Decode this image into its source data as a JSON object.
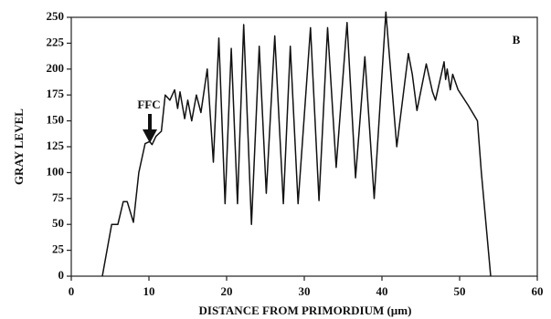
{
  "chart_data": {
    "type": "line",
    "x_label": "DISTANCE FROM PRIMORDIUM (µm)",
    "y_label": "GRAY LEVEL",
    "annotations": [
      "FFC",
      "B"
    ],
    "xlim": [
      0,
      60
    ],
    "xticks": [
      0,
      10,
      20,
      30,
      40,
      50,
      60
    ],
    "ylim": [
      0,
      250
    ],
    "yticks": [
      0,
      25,
      50,
      75,
      100,
      125,
      150,
      175,
      200,
      225,
      250
    ],
    "grid": false,
    "series": [
      {
        "name": "gray level",
        "color": "#111111",
        "x": [
          4.0,
          5.2,
          6.0,
          6.7,
          7.2,
          8.0,
          8.7,
          9.5,
          10.1,
          10.4,
          10.9,
          11.6,
          12.1,
          12.7,
          13.3,
          13.7,
          14.0,
          14.6,
          15.0,
          15.5,
          16.1,
          16.7,
          17.5,
          18.3,
          19.0,
          19.8,
          20.6,
          21.4,
          22.2,
          23.2,
          24.2,
          25.1,
          26.2,
          27.3,
          28.2,
          29.2,
          30.8,
          31.9,
          33.0,
          34.1,
          35.5,
          36.6,
          37.8,
          39.0,
          40.5,
          41.9,
          43.4,
          43.9,
          44.5,
          45.7,
          46.5,
          46.9,
          48.0,
          48.2,
          48.4,
          48.8,
          49.1,
          49.8,
          51.1,
          52.3,
          52.8,
          54.0
        ],
        "values": [
          0,
          50,
          50,
          72,
          72,
          52,
          100,
          128,
          130,
          127,
          135,
          140,
          175,
          170,
          180,
          162,
          178,
          152,
          170,
          150,
          175,
          158,
          200,
          110,
          230,
          70,
          220,
          70,
          243,
          50,
          222,
          80,
          232,
          70,
          222,
          70,
          240,
          73,
          240,
          105,
          245,
          95,
          212,
          75,
          255,
          125,
          215,
          195,
          160,
          205,
          178,
          170,
          207,
          190,
          200,
          180,
          195,
          180,
          165,
          150,
          100,
          0
        ]
      }
    ]
  }
}
